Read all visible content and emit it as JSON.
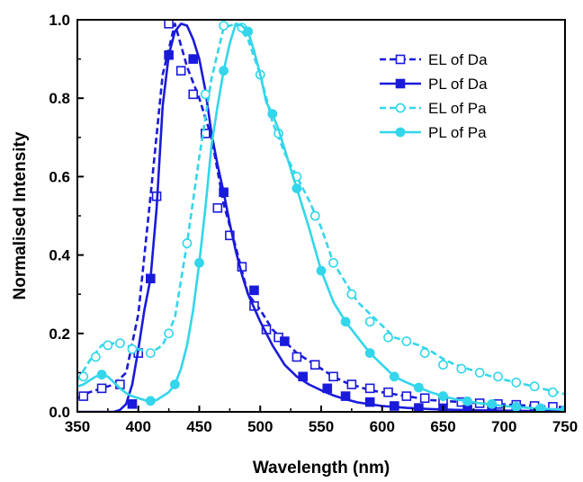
{
  "chart_data": {
    "type": "line",
    "xlabel": "Wavelength (nm)",
    "ylabel": "Normalised Intensity",
    "xlim": [
      350,
      750
    ],
    "ylim": [
      0,
      1.0
    ],
    "xticks": [
      350,
      400,
      450,
      500,
      550,
      600,
      650,
      700,
      750
    ],
    "xtick_labels": [
      "350",
      "400",
      "450",
      "500",
      "550",
      "600",
      "650",
      "700",
      "750"
    ],
    "yticks": [
      0,
      0.2,
      0.4,
      0.6,
      0.8,
      1.0
    ],
    "ytick_labels": [
      "0.0",
      "0.2",
      "0.4",
      "0.6",
      "0.8",
      "1.0"
    ],
    "grid": false,
    "legend_position": "top-right",
    "series": [
      {
        "name": "EL of Da",
        "color": "#1a1adb",
        "dash": "dashed",
        "marker": "open-square",
        "x": [
          350,
          360,
          370,
          380,
          390,
          400,
          410,
          420,
          430,
          440,
          450,
          460,
          470,
          480,
          490,
          500,
          510,
          520,
          530,
          540,
          550,
          560,
          570,
          580,
          590,
          600,
          610,
          620,
          630,
          640,
          650,
          660,
          670,
          680,
          690,
          700,
          710,
          720,
          730,
          740,
          750
        ],
        "y": [
          0.035,
          0.05,
          0.06,
          0.07,
          0.1,
          0.25,
          0.55,
          0.86,
          0.99,
          0.88,
          0.8,
          0.7,
          0.53,
          0.42,
          0.3,
          0.26,
          0.21,
          0.18,
          0.15,
          0.13,
          0.11,
          0.09,
          0.075,
          0.065,
          0.055,
          0.05,
          0.045,
          0.04,
          0.035,
          0.03,
          0.028,
          0.026,
          0.024,
          0.022,
          0.02,
          0.019,
          0.017,
          0.016,
          0.015,
          0.013,
          0.012
        ],
        "marker_x": [
          355,
          370,
          385,
          400,
          415,
          425,
          435,
          445,
          455,
          465,
          475,
          485,
          495,
          505,
          515,
          530,
          545,
          560,
          575,
          590,
          605,
          620,
          635,
          650,
          665,
          680,
          695,
          710,
          725,
          740
        ],
        "marker_y": [
          0.04,
          0.06,
          0.07,
          0.15,
          0.55,
          0.99,
          0.87,
          0.81,
          0.71,
          0.52,
          0.45,
          0.37,
          0.27,
          0.21,
          0.19,
          0.14,
          0.12,
          0.09,
          0.07,
          0.06,
          0.05,
          0.04,
          0.035,
          0.03,
          0.025,
          0.022,
          0.02,
          0.018,
          0.015,
          0.013
        ]
      },
      {
        "name": "PL of Da",
        "color": "#1a1adb",
        "dash": "solid",
        "marker": "filled-square",
        "x": [
          350,
          360,
          370,
          380,
          385,
          390,
          395,
          400,
          405,
          410,
          415,
          420,
          425,
          430,
          435,
          440,
          445,
          450,
          455,
          460,
          465,
          470,
          475,
          480,
          485,
          490,
          500,
          510,
          520,
          530,
          540,
          550,
          560,
          570,
          580,
          600,
          620,
          640,
          660,
          680,
          700,
          720,
          740,
          750
        ],
        "y": [
          0.0,
          0.0,
          0.0,
          0.0,
          0.005,
          0.02,
          0.07,
          0.16,
          0.26,
          0.34,
          0.52,
          0.78,
          0.91,
          0.97,
          0.99,
          0.985,
          0.95,
          0.9,
          0.82,
          0.71,
          0.63,
          0.56,
          0.48,
          0.41,
          0.35,
          0.3,
          0.23,
          0.17,
          0.12,
          0.09,
          0.07,
          0.055,
          0.042,
          0.032,
          0.024,
          0.015,
          0.01,
          0.007,
          0.005,
          0.004,
          0.003,
          0.002,
          0.002,
          0.002
        ],
        "marker_x": [
          395,
          410,
          425,
          445,
          470,
          495,
          520,
          535,
          555,
          570,
          590,
          610,
          630,
          650,
          670,
          690,
          710,
          730,
          750
        ],
        "marker_y": [
          0.02,
          0.34,
          0.91,
          0.9,
          0.56,
          0.31,
          0.18,
          0.09,
          0.06,
          0.04,
          0.025,
          0.015,
          0.01,
          0.008,
          0.006,
          0.005,
          0.004,
          0.003,
          0.002
        ]
      },
      {
        "name": "EL of Pa",
        "color": "#33d6ea",
        "dash": "dashed",
        "marker": "open-circle",
        "x": [
          350,
          360,
          370,
          380,
          390,
          400,
          410,
          420,
          430,
          440,
          450,
          460,
          470,
          480,
          490,
          500,
          510,
          520,
          530,
          540,
          550,
          560,
          570,
          580,
          590,
          600,
          610,
          620,
          630,
          640,
          650,
          660,
          670,
          680,
          690,
          700,
          710,
          720,
          730,
          740,
          750
        ],
        "y": [
          0.08,
          0.13,
          0.17,
          0.175,
          0.17,
          0.16,
          0.15,
          0.17,
          0.24,
          0.43,
          0.65,
          0.85,
          0.98,
          0.99,
          0.95,
          0.86,
          0.74,
          0.66,
          0.6,
          0.54,
          0.47,
          0.38,
          0.33,
          0.28,
          0.25,
          0.22,
          0.19,
          0.18,
          0.17,
          0.155,
          0.135,
          0.12,
          0.11,
          0.1,
          0.09,
          0.082,
          0.075,
          0.068,
          0.06,
          0.053,
          0.045
        ],
        "marker_x": [
          355,
          365,
          375,
          385,
          395,
          410,
          425,
          440,
          455,
          470,
          485,
          500,
          515,
          530,
          545,
          560,
          575,
          590,
          605,
          620,
          635,
          650,
          665,
          680,
          695,
          710,
          725,
          740
        ],
        "marker_y": [
          0.09,
          0.14,
          0.17,
          0.175,
          0.16,
          0.15,
          0.2,
          0.43,
          0.81,
          0.985,
          0.98,
          0.86,
          0.71,
          0.6,
          0.5,
          0.38,
          0.3,
          0.23,
          0.19,
          0.18,
          0.15,
          0.12,
          0.11,
          0.1,
          0.09,
          0.075,
          0.065,
          0.05
        ]
      },
      {
        "name": "PL of Pa",
        "color": "#33d6ea",
        "dash": "solid",
        "marker": "filled-circle",
        "x": [
          350,
          355,
          360,
          365,
          370,
          375,
          380,
          385,
          390,
          395,
          400,
          405,
          410,
          415,
          420,
          425,
          430,
          435,
          440,
          445,
          450,
          455,
          460,
          465,
          470,
          475,
          480,
          485,
          490,
          495,
          500,
          505,
          510,
          515,
          520,
          525,
          530,
          540,
          550,
          560,
          570,
          580,
          590,
          600,
          610,
          620,
          630,
          640,
          650,
          660,
          680,
          700,
          720,
          740,
          750
        ],
        "y": [
          0.065,
          0.07,
          0.08,
          0.09,
          0.095,
          0.09,
          0.075,
          0.06,
          0.048,
          0.04,
          0.035,
          0.03,
          0.028,
          0.03,
          0.04,
          0.05,
          0.07,
          0.11,
          0.17,
          0.26,
          0.38,
          0.52,
          0.68,
          0.78,
          0.87,
          0.94,
          0.99,
          0.985,
          0.97,
          0.92,
          0.86,
          0.79,
          0.76,
          0.72,
          0.67,
          0.62,
          0.57,
          0.47,
          0.36,
          0.28,
          0.23,
          0.19,
          0.15,
          0.12,
          0.09,
          0.075,
          0.062,
          0.05,
          0.04,
          0.032,
          0.022,
          0.015,
          0.01,
          0.007,
          0.005
        ],
        "marker_x": [
          370,
          410,
          430,
          450,
          470,
          490,
          510,
          530,
          550,
          570,
          590,
          610,
          630,
          650,
          670,
          690,
          710,
          730,
          750
        ],
        "marker_y": [
          0.095,
          0.028,
          0.07,
          0.38,
          0.87,
          0.97,
          0.76,
          0.57,
          0.36,
          0.23,
          0.15,
          0.09,
          0.062,
          0.04,
          0.027,
          0.02,
          0.013,
          0.009,
          0.005
        ]
      }
    ]
  }
}
